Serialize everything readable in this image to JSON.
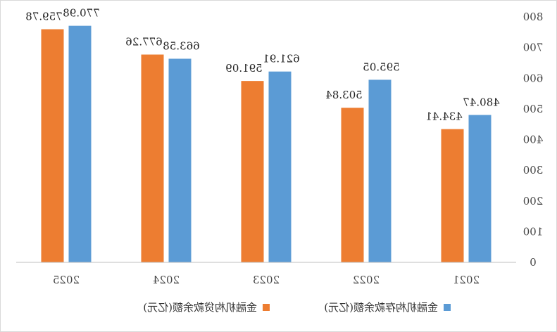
{
  "chart_data": {
    "type": "bar",
    "title": "",
    "categories": [
      "2025",
      "2024",
      "2023",
      "2022",
      "2021"
    ],
    "series": [
      {
        "name": "金融机构贷款余额(亿元)",
        "color": "#ED7D31",
        "values": [
          759.78,
          677.26,
          591.09,
          503.84,
          434.41
        ]
      },
      {
        "name": "金融机构存款余额(亿元)",
        "color": "#5B9BD5",
        "values": [
          770.98,
          663.58,
          621.91,
          595.05,
          480.47
        ]
      }
    ],
    "ylim": [
      0,
      800
    ],
    "yticks": [
      0,
      100,
      200,
      300,
      400,
      500,
      600,
      700,
      800
    ],
    "yaxis_position": "right",
    "grid": false,
    "legend_position": "bottom",
    "orientation": "mirrored"
  }
}
